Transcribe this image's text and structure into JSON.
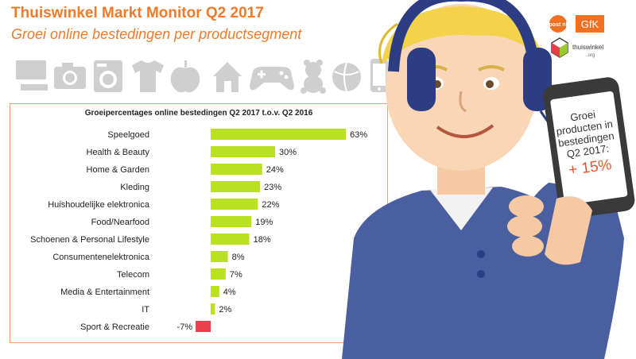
{
  "header": {
    "title": "Thuiswinkel Markt Monitor Q2 2017",
    "subtitle": "Groei online bestedingen per productsegment"
  },
  "icons": [
    "computer-icon",
    "camera-icon",
    "washing-machine-icon",
    "tshirt-icon",
    "apple-icon",
    "house-icon",
    "gamepad-icon",
    "teddy-bear-icon",
    "ball-icon",
    "phone-icon"
  ],
  "logos": {
    "postnl": "post nl",
    "gfk": "GfK",
    "thuiswinkel": "thuiswinkel",
    "thuiswinkel_sub": ".org"
  },
  "phone": {
    "line1": "Groei",
    "line2": "producten in",
    "line3": "bestedingen",
    "line4": "Q2 2017:",
    "value": "+ 15%"
  },
  "colors": {
    "orange": "#f07a28",
    "positive_bar": "#b9e021",
    "negative_bar": "#e8404a",
    "headphones": "#2d3d84",
    "shirt": "#4a5fa0"
  },
  "chart_data": {
    "type": "bar",
    "orientation": "horizontal",
    "title": "Groeipercentages online bestedingen Q2 2017 t.o.v. Q2 2016",
    "categories": [
      "Speelgoed",
      "Health & Beauty",
      "Home & Garden",
      "Kleding",
      "Huishoudelijke elektronica",
      "Food/Nearfood",
      "Schoenen & Personal Lifestyle",
      "Consumentenelektronica",
      "Telecom",
      "Media & Entertainment",
      "IT",
      "Sport & Recreatie"
    ],
    "values": [
      63,
      30,
      24,
      23,
      22,
      19,
      18,
      8,
      7,
      4,
      2,
      -7
    ],
    "value_labels": [
      "63%",
      "30%",
      "24%",
      "23%",
      "22%",
      "19%",
      "18%",
      "8%",
      "7%",
      "4%",
      "2%",
      "-7%"
    ],
    "xlim": [
      -7,
      63
    ],
    "grid": false,
    "legend": "none"
  }
}
